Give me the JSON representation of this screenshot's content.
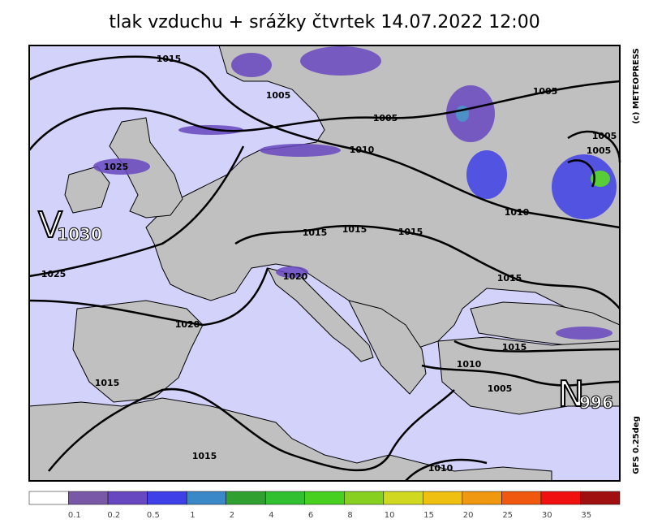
{
  "header": {
    "title": "tlak vzduchu + srážky čtvrtek 14.07.2022 12:00"
  },
  "map": {
    "high": {
      "letter": "V",
      "value": "1030"
    },
    "low": {
      "letter": "N",
      "value": "996"
    },
    "credit": "(c) METEOPRESS",
    "model": "GFS 0.25deg",
    "isobar_labels": [
      "1015",
      "1005",
      "1005",
      "1005",
      "1010",
      "1005",
      "1005",
      "1025",
      "1010",
      "1015",
      "1015",
      "1015",
      "1020",
      "1015",
      "1025",
      "1020",
      "1015",
      "1010",
      "1005",
      "1015",
      "1015",
      "1010"
    ]
  },
  "legend": {
    "colors": [
      "#ffffff",
      "#7a58a8",
      "#6848c0",
      "#4040e8",
      "#3a88c8",
      "#30a030",
      "#30c030",
      "#48d020",
      "#88d020",
      "#d0d820",
      "#f0c010",
      "#f09810",
      "#f05810",
      "#f01010",
      "#a01010"
    ],
    "labels": [
      0.1,
      0.2,
      0.5,
      1,
      2,
      4,
      6,
      8,
      10,
      15,
      20,
      25,
      30,
      35
    ]
  }
}
